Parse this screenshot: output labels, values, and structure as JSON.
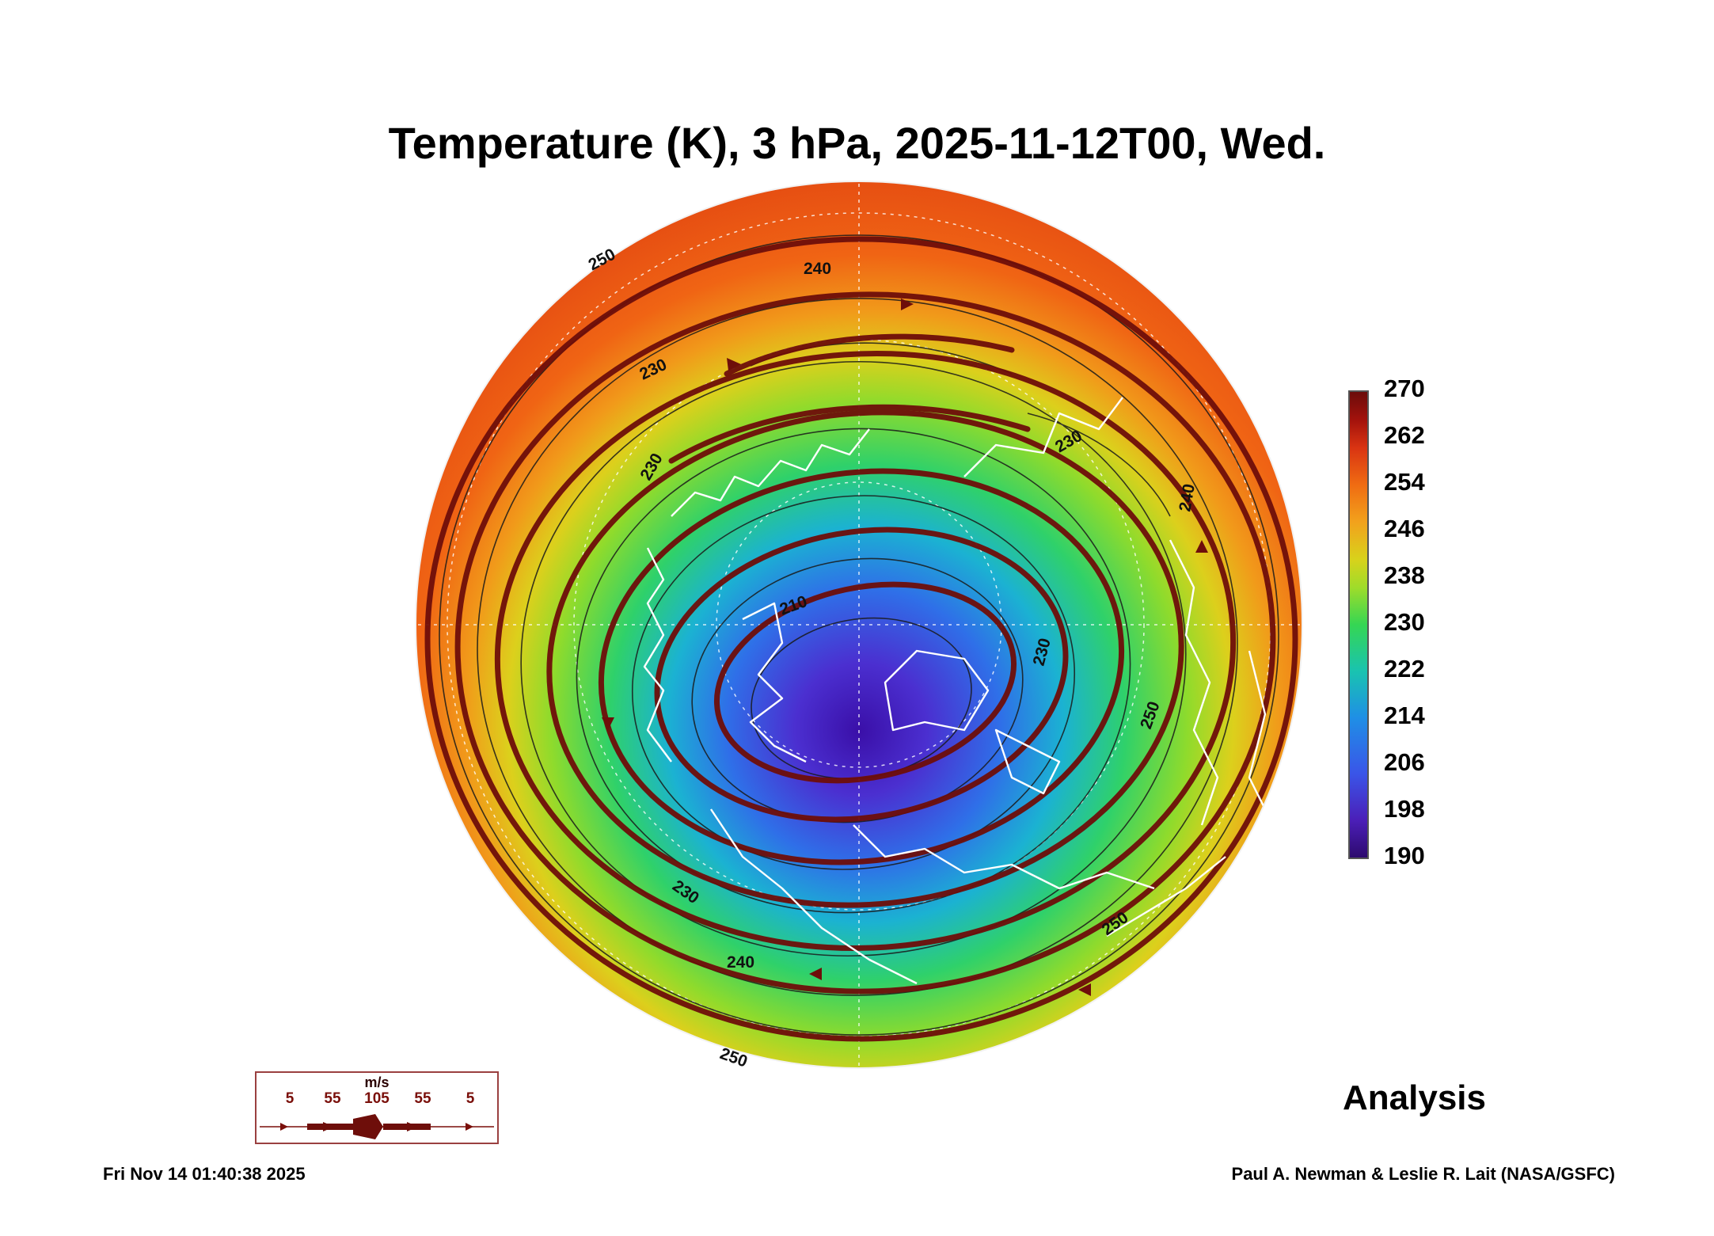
{
  "title": "Temperature (K), 3 hPa, 2025-11-12T00, Wed.",
  "colorbar": {
    "labels": [
      "270",
      "262",
      "254",
      "246",
      "238",
      "230",
      "222",
      "214",
      "206",
      "198",
      "190"
    ],
    "min": 190,
    "max": 270,
    "colors": [
      "#2d0a6e",
      "#4b1fb8",
      "#1f8fe6",
      "#35d653",
      "#d8d21b",
      "#f06c12",
      "#6b0c0a"
    ]
  },
  "contour_labels": {
    "c250_top_left": "250",
    "c240_top": "240",
    "c230_upper_left": "230",
    "c230_left": "230",
    "c230_right": "230",
    "c240_right": "240",
    "c210_center": "210",
    "c230_center_right": "230",
    "c250_right": "250",
    "c230_lower_left": "230",
    "c240_lower": "240",
    "c250_lower_right": "250",
    "c250_bottom": "250"
  },
  "wind_key": {
    "unit": "m/s",
    "speeds": [
      "5",
      "55",
      "105",
      "55",
      "5"
    ]
  },
  "analysis_label": "Analysis",
  "timestamp": "Fri Nov 14 01:40:38 2025",
  "credit": "Paul A. Newman & Leslie R. Lait (NASA/GSFC)"
}
